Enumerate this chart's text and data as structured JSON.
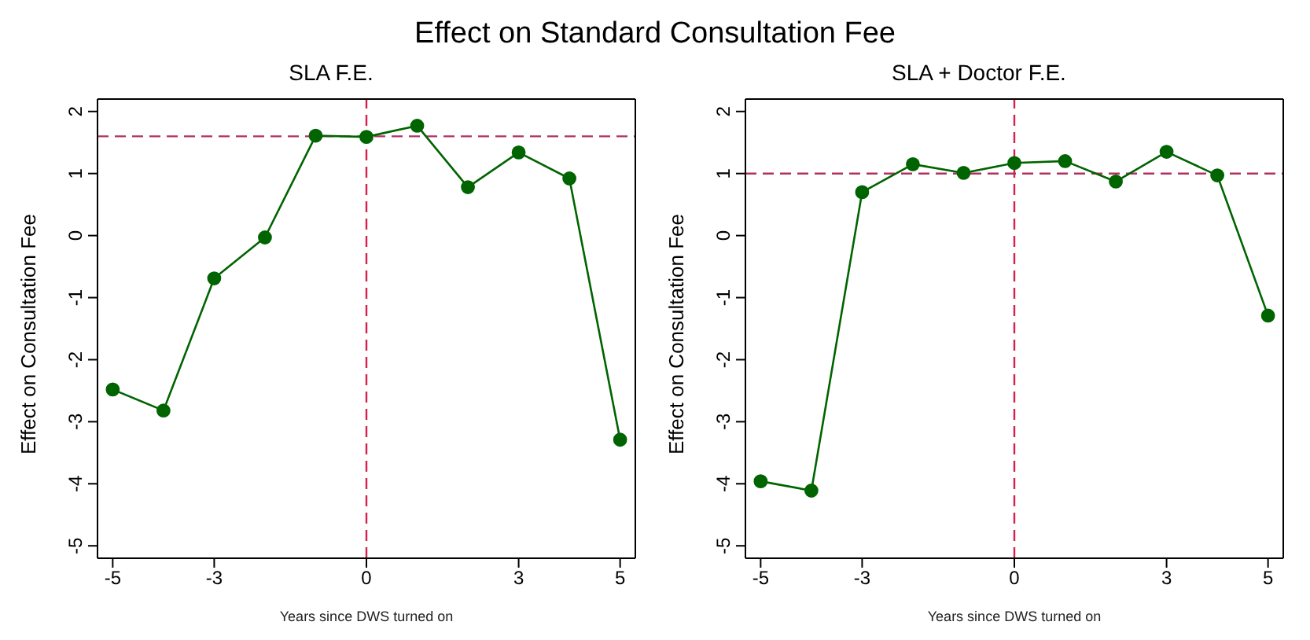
{
  "chart_data": [
    {
      "type": "line",
      "title": "Effect on Standard Consultation Fee",
      "subtitle": "SLA F.E.",
      "xlabel": "Years since DWS turned on",
      "ylabel": "Effect on Consultation Fee",
      "x": [
        -5,
        -4,
        -3,
        -2,
        -1,
        0,
        1,
        2,
        3,
        4,
        5
      ],
      "series": [
        {
          "color": "#006400",
          "values": [
            -2.48,
            -2.82,
            -0.69,
            -0.03,
            1.61,
            1.59,
            1.77,
            0.78,
            1.34,
            0.92,
            -3.29
          ]
        }
      ],
      "xlim": [
        -5.3,
        5.3
      ],
      "xticks": [
        -5,
        -3,
        0,
        3,
        5
      ],
      "ylim": [
        -5.2,
        2.2
      ],
      "yticks": [
        -5,
        -4,
        -3,
        -2,
        -1,
        0,
        1,
        2
      ],
      "ref_lines": [
        {
          "axis": "x",
          "value": 0,
          "color": "#d6204e",
          "line_style": "dashed"
        },
        {
          "axis": "y",
          "value": 1.6,
          "color": "#b03060",
          "line_style": "dashed"
        }
      ],
      "marker": "circle",
      "line_style": "solid",
      "grid": false,
      "legend": false
    },
    {
      "type": "line",
      "subtitle": "SLA + Doctor F.E.",
      "xlabel": "Years since DWS turned on",
      "ylabel": "Effect on Consultation Fee",
      "x": [
        -5,
        -4,
        -3,
        -2,
        -1,
        0,
        1,
        2,
        3,
        4,
        5
      ],
      "series": [
        {
          "color": "#006400",
          "values": [
            -3.96,
            -4.11,
            0.7,
            1.15,
            1.01,
            1.17,
            1.2,
            0.87,
            1.35,
            0.97,
            -1.29
          ]
        }
      ],
      "xlim": [
        -5.3,
        5.3
      ],
      "xticks": [
        -5,
        -3,
        0,
        3,
        5
      ],
      "ylim": [
        -5.2,
        2.2
      ],
      "yticks": [
        -5,
        -4,
        -3,
        -2,
        -1,
        0,
        1,
        2
      ],
      "ref_lines": [
        {
          "axis": "x",
          "value": 0,
          "color": "#d6204e",
          "line_style": "dashed"
        },
        {
          "axis": "y",
          "value": 1,
          "color": "#b03060",
          "line_style": "dashed"
        }
      ],
      "marker": "circle",
      "line_style": "solid",
      "grid": false,
      "legend": false
    }
  ]
}
